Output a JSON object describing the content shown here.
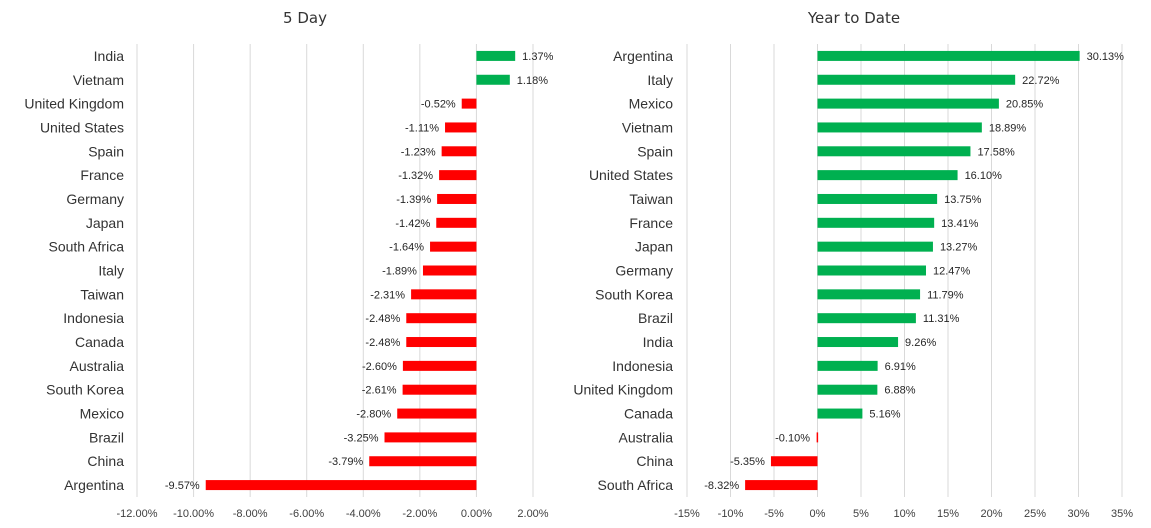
{
  "colors": {
    "positive": "#00b050",
    "negative": "#ff0000"
  },
  "chart_data": [
    {
      "type": "bar",
      "orientation": "horizontal",
      "title": "5 Day",
      "categories": [
        "India",
        "Vietnam",
        "United Kingdom",
        "United States",
        "Spain",
        "France",
        "Germany",
        "Japan",
        "South Africa",
        "Italy",
        "Taiwan",
        "Indonesia",
        "Canada",
        "Australia",
        "South Korea",
        "Mexico",
        "Brazil",
        "China",
        "Argentina"
      ],
      "values": [
        1.37,
        1.18,
        -0.52,
        -1.11,
        -1.23,
        -1.32,
        -1.39,
        -1.42,
        -1.64,
        -1.89,
        -2.31,
        -2.48,
        -2.48,
        -2.6,
        -2.61,
        -2.8,
        -3.25,
        -3.79,
        -9.57
      ],
      "data_labels": [
        "1.37%",
        "1.18%",
        "-0.52%",
        "-1.11%",
        "-1.23%",
        "-1.32%",
        "-1.39%",
        "-1.42%",
        "-1.64%",
        "-1.89%",
        "-2.31%",
        "-2.48%",
        "-2.48%",
        "-2.60%",
        "-2.61%",
        "-2.80%",
        "-3.25%",
        "-3.79%",
        "-9.57%"
      ],
      "xlim": [
        -12,
        2
      ],
      "ticks": [
        -12,
        -10,
        -8,
        -6,
        -4,
        -2,
        0,
        2
      ],
      "tick_labels": [
        "-12.00%",
        "-10.00%",
        "-8.00%",
        "-6.00%",
        "-4.00%",
        "-2.00%",
        "0.00%",
        "2.00%"
      ],
      "grid": true,
      "xlabel": "",
      "ylabel": ""
    },
    {
      "type": "bar",
      "orientation": "horizontal",
      "title": "Year to Date",
      "categories": [
        "Argentina",
        "Italy",
        "Mexico",
        "Vietnam",
        "Spain",
        "United States",
        "Taiwan",
        "France",
        "Japan",
        "Germany",
        "South Korea",
        "Brazil",
        "India",
        "Indonesia",
        "United Kingdom",
        "Canada",
        "Australia",
        "China",
        "South Africa"
      ],
      "values": [
        30.13,
        22.72,
        20.85,
        18.89,
        17.58,
        16.1,
        13.75,
        13.41,
        13.27,
        12.47,
        11.79,
        11.31,
        9.26,
        6.91,
        6.88,
        5.16,
        -0.1,
        -5.35,
        -8.32
      ],
      "data_labels": [
        "30.13%",
        "22.72%",
        "20.85%",
        "18.89%",
        "17.58%",
        "16.10%",
        "13.75%",
        "13.41%",
        "13.27%",
        "12.47%",
        "11.79%",
        "11.31%",
        "9.26%",
        "6.91%",
        "6.88%",
        "5.16%",
        "-0.10%",
        "-5.35%",
        "-8.32%"
      ],
      "xlim": [
        -15,
        35
      ],
      "ticks": [
        -15,
        -10,
        -5,
        0,
        5,
        10,
        15,
        20,
        25,
        30,
        35
      ],
      "tick_labels": [
        "-15%",
        "-10%",
        "-5%",
        "0%",
        "5%",
        "10%",
        "15%",
        "20%",
        "25%",
        "30%",
        "35%"
      ],
      "grid": true,
      "xlabel": "",
      "ylabel": ""
    }
  ]
}
